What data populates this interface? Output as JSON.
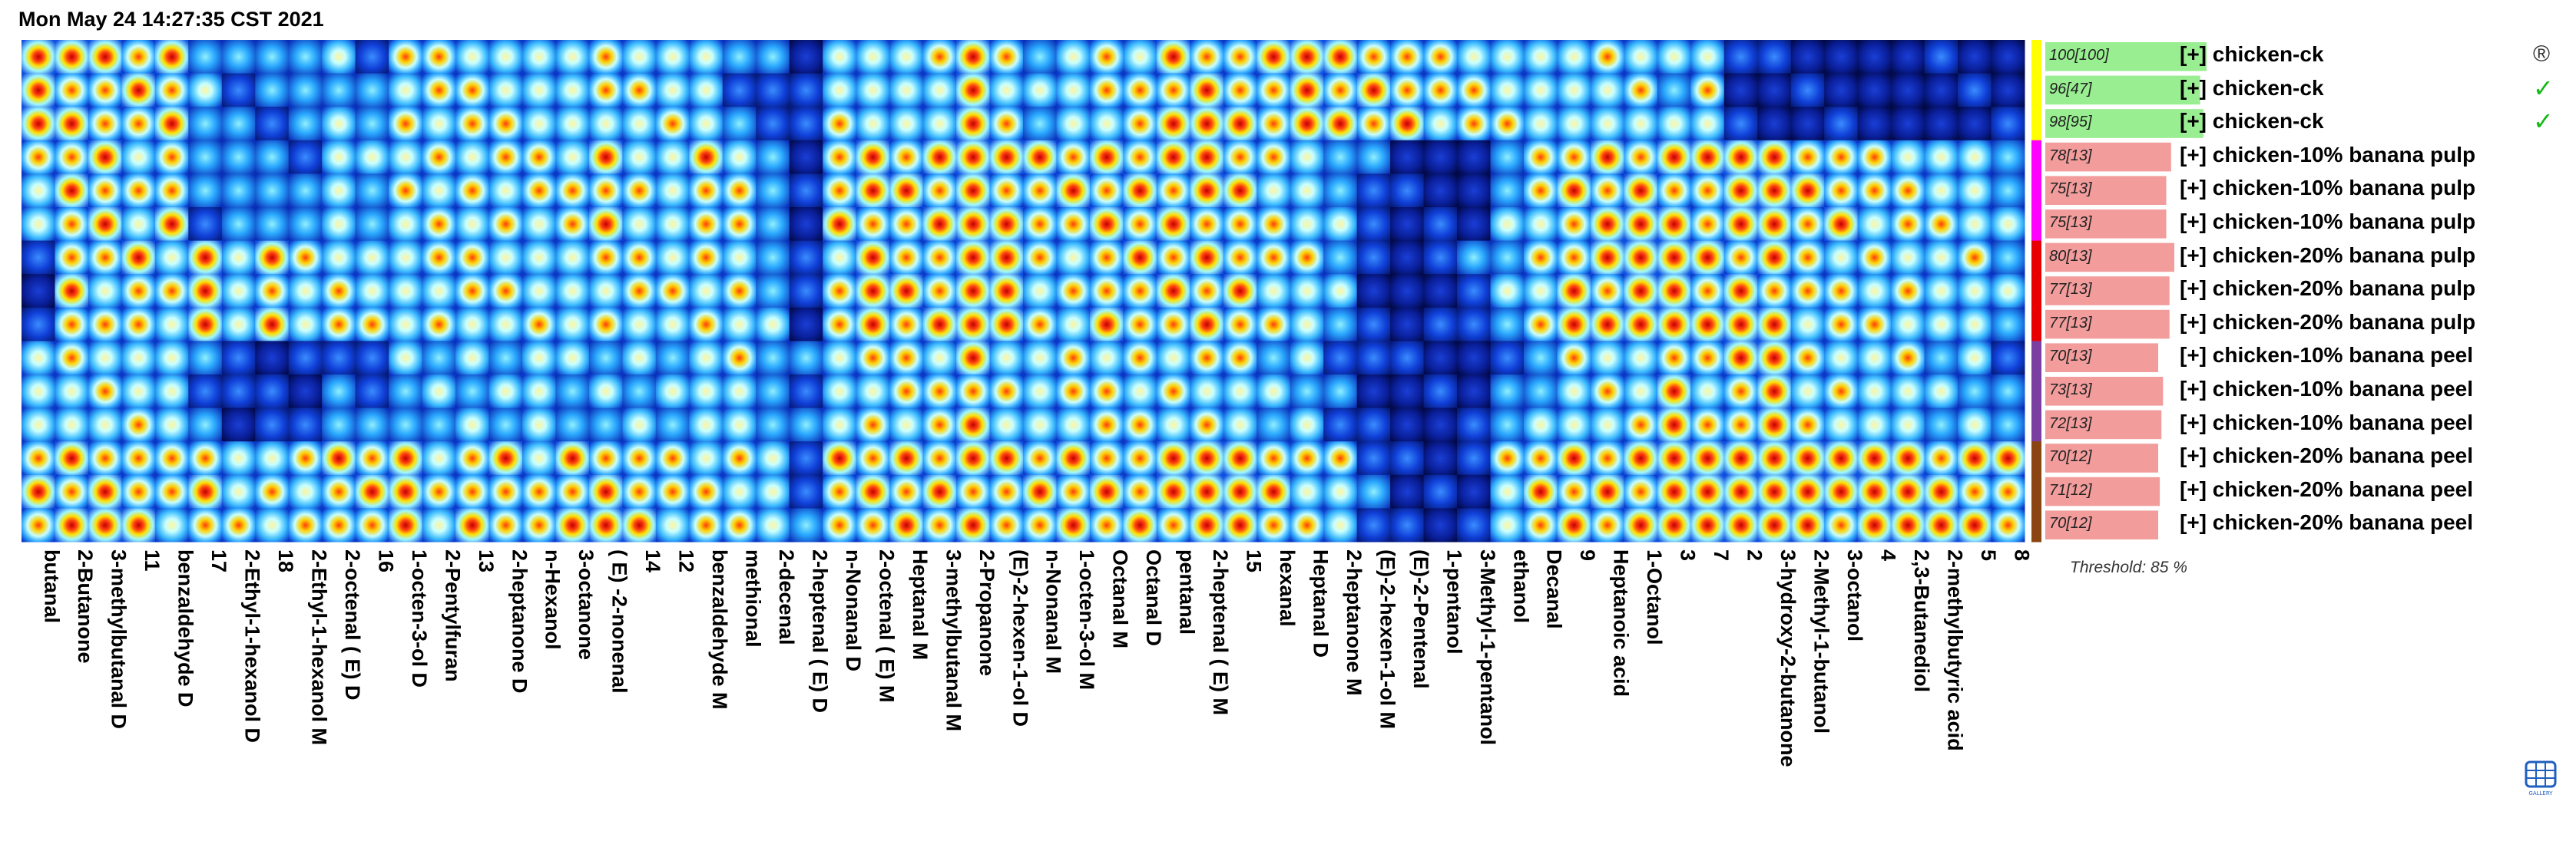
{
  "timestamp": "Mon May 24 14:27:35 CST 2021",
  "threshold_label": "Threshold: 85 %",
  "gallery_label": "GALLERY",
  "marks": {
    "reference": "®",
    "match": "✓"
  },
  "colors": {
    "ck": "#ffff00",
    "banana_pulp_10": "#ff00ff",
    "banana_pulp_20": "#e80000",
    "banana_peel_10": "#7a3fa0",
    "banana_peel_20": "#8b4513",
    "similarity_ok": "#98ee90",
    "similarity_low": "#f29c9c"
  },
  "chart_data": {
    "type": "heatmap",
    "title": "",
    "xlabel": "",
    "ylabel": "",
    "columns": [
      "butanal",
      "2-Butanone",
      "3-methylbutanal D",
      "11",
      "benzaldehyde D",
      "17",
      "2-Ethyl-1-hexanol D",
      "18",
      "2-Ethyl-1-hexanol M",
      "2-octenal ( E) D",
      "16",
      "1-octen-3-ol D",
      "2-Pentylfuran",
      "13",
      "2-heptanone D",
      "n-Hexanol",
      "3-octanone",
      "( E) -2-nonenal",
      "14",
      "12",
      "benzaldehyde M",
      "methional",
      "2-decenal",
      "2-heptenal ( E) D",
      "n-Nonanal D",
      "2-octenal ( E) M",
      "Heptanal M",
      "3-methylbutanal M",
      "2-Propanone",
      "(E)-2-hexen-1-ol D",
      "n-Nonanal M",
      "1-octen-3-ol M",
      "Octanal M",
      "Octanal D",
      "pentanal",
      "2-heptenal ( E) M",
      "15",
      "hexanal",
      "Heptanal D",
      "2-heptanone M",
      "(E)-2-hexen-1-ol M",
      "(E)-2-Pentenal",
      "1-pentanol",
      "3-Methyl-1-pentanol",
      "ethanol",
      "Decanal",
      "9",
      "Heptanoic acid",
      "1-Octanol",
      "3",
      "7",
      "2",
      "3-hydroxy-2-butanone",
      "2-Methyl-1-butanol",
      "3-octanol",
      "4",
      "2,3-Butanediol",
      "2-methylbutyric acid",
      "5",
      "8"
    ],
    "rows": [
      {
        "label": "[+] chicken-ck",
        "group": "ck",
        "similarity": 100,
        "similarity_text": "100[100]",
        "mark": "reference"
      },
      {
        "label": "[+] chicken-ck",
        "group": "ck",
        "similarity": 96,
        "similarity_text": "96[47]",
        "mark": "match"
      },
      {
        "label": "[+] chicken-ck",
        "group": "ck",
        "similarity": 98,
        "similarity_text": "98[95]",
        "mark": "match"
      },
      {
        "label": "[+] chicken-10% banana pulp",
        "group": "banana_pulp_10",
        "similarity": 78,
        "similarity_text": "78[13]"
      },
      {
        "label": "[+] chicken-10% banana pulp",
        "group": "banana_pulp_10",
        "similarity": 75,
        "similarity_text": "75[13]"
      },
      {
        "label": "[+] chicken-10% banana pulp",
        "group": "banana_pulp_10",
        "similarity": 75,
        "similarity_text": "75[13]"
      },
      {
        "label": "[+] chicken-20% banana pulp",
        "group": "banana_pulp_20",
        "similarity": 80,
        "similarity_text": "80[13]"
      },
      {
        "label": "[+] chicken-20% banana pulp",
        "group": "banana_pulp_20",
        "similarity": 77,
        "similarity_text": "77[13]"
      },
      {
        "label": "[+] chicken-20% banana pulp",
        "group": "banana_pulp_20",
        "similarity": 77,
        "similarity_text": "77[13]"
      },
      {
        "label": "[+] chicken-10% banana peel",
        "group": "banana_peel_10",
        "similarity": 70,
        "similarity_text": "70[13]"
      },
      {
        "label": "[+] chicken-10% banana peel",
        "group": "banana_peel_10",
        "similarity": 73,
        "similarity_text": "73[13]"
      },
      {
        "label": "[+] chicken-10% banana peel",
        "group": "banana_peel_10",
        "similarity": 72,
        "similarity_text": "72[13]"
      },
      {
        "label": "[+] chicken-20% banana peel",
        "group": "banana_peel_20",
        "similarity": 70,
        "similarity_text": "70[12]"
      },
      {
        "label": "[+] chicken-20% banana peel",
        "group": "banana_peel_20",
        "similarity": 71,
        "similarity_text": "71[12]"
      },
      {
        "label": "[+] chicken-20% banana peel",
        "group": "banana_peel_20",
        "similarity": 70,
        "similarity_text": "70[12]"
      }
    ],
    "column_group_intensity": [
      [
        1.0,
        0.6,
        0.2,
        0.6,
        0.8
      ],
      [
        0.9,
        0.8,
        0.8,
        0.6,
        0.8
      ],
      [
        0.8,
        0.8,
        0.7,
        0.6,
        0.9
      ],
      [
        0.8,
        0.7,
        0.8,
        0.6,
        0.8
      ],
      [
        0.8,
        0.8,
        0.6,
        0.6,
        0.7
      ],
      [
        0.5,
        0.4,
        1.0,
        0.4,
        0.8
      ],
      [
        0.4,
        0.4,
        0.6,
        0.2,
        0.6
      ],
      [
        0.4,
        0.4,
        0.9,
        0.2,
        0.7
      ],
      [
        0.4,
        0.4,
        0.6,
        0.2,
        0.7
      ],
      [
        0.5,
        0.6,
        0.7,
        0.4,
        0.8
      ],
      [
        0.4,
        0.5,
        0.6,
        0.3,
        0.8
      ],
      [
        0.7,
        0.6,
        0.6,
        0.5,
        0.9
      ],
      [
        0.7,
        0.7,
        0.7,
        0.5,
        0.7
      ],
      [
        0.7,
        0.7,
        0.7,
        0.5,
        0.8
      ],
      [
        0.6,
        0.7,
        0.6,
        0.5,
        0.8
      ],
      [
        0.6,
        0.7,
        0.6,
        0.6,
        0.7
      ],
      [
        0.6,
        0.7,
        0.6,
        0.5,
        0.8
      ],
      [
        0.7,
        0.8,
        0.7,
        0.5,
        0.9
      ],
      [
        0.6,
        0.7,
        0.7,
        0.5,
        0.8
      ],
      [
        0.6,
        0.6,
        0.6,
        0.5,
        0.7
      ],
      [
        0.6,
        0.8,
        0.7,
        0.6,
        0.7
      ],
      [
        0.4,
        0.7,
        0.7,
        0.6,
        0.7
      ],
      [
        0.3,
        0.4,
        0.5,
        0.4,
        0.6
      ],
      [
        0.2,
        0.2,
        0.2,
        0.3,
        0.3
      ],
      [
        0.6,
        0.8,
        0.7,
        0.6,
        0.8
      ],
      [
        0.6,
        0.9,
        0.9,
        0.7,
        0.8
      ],
      [
        0.6,
        0.8,
        0.8,
        0.7,
        0.8
      ],
      [
        0.6,
        0.8,
        0.8,
        0.7,
        0.8
      ],
      [
        0.9,
        1.0,
        1.0,
        0.8,
        0.9
      ],
      [
        0.7,
        0.9,
        0.9,
        0.7,
        0.8
      ],
      [
        0.5,
        0.8,
        0.7,
        0.6,
        0.8
      ],
      [
        0.6,
        0.8,
        0.7,
        0.7,
        0.8
      ],
      [
        0.7,
        0.8,
        0.8,
        0.7,
        0.8
      ],
      [
        0.7,
        0.8,
        0.8,
        0.7,
        0.8
      ],
      [
        0.8,
        0.9,
        0.8,
        0.7,
        0.9
      ],
      [
        0.9,
        0.9,
        0.8,
        0.7,
        0.9
      ],
      [
        0.8,
        0.8,
        0.8,
        0.6,
        0.9
      ],
      [
        0.8,
        0.7,
        0.7,
        0.5,
        0.8
      ],
      [
        0.9,
        0.6,
        0.6,
        0.5,
        0.7
      ],
      [
        0.8,
        0.5,
        0.5,
        0.3,
        0.6
      ],
      [
        0.8,
        0.3,
        0.2,
        0.2,
        0.3
      ],
      [
        0.8,
        0.1,
        0.1,
        0.1,
        0.2
      ],
      [
        0.7,
        0.1,
        0.2,
        0.1,
        0.2
      ],
      [
        0.7,
        0.1,
        0.3,
        0.1,
        0.2
      ],
      [
        0.6,
        0.5,
        0.5,
        0.4,
        0.6
      ],
      [
        0.6,
        0.7,
        0.7,
        0.5,
        0.8
      ],
      [
        0.6,
        0.8,
        0.9,
        0.6,
        0.8
      ],
      [
        0.6,
        0.8,
        0.9,
        0.6,
        0.8
      ],
      [
        0.6,
        0.9,
        1.0,
        0.6,
        0.9
      ],
      [
        0.5,
        0.9,
        1.0,
        0.9,
        1.0
      ],
      [
        0.7,
        0.8,
        0.8,
        0.7,
        0.9
      ],
      [
        0.2,
        0.9,
        0.9,
        0.8,
        1.0
      ],
      [
        0.1,
        0.9,
        0.9,
        0.9,
        1.0
      ],
      [
        0.1,
        0.8,
        0.7,
        0.7,
        1.0
      ],
      [
        0.1,
        0.8,
        0.7,
        0.7,
        0.9
      ],
      [
        0.1,
        0.7,
        0.7,
        0.6,
        0.9
      ],
      [
        0.1,
        0.7,
        0.7,
        0.6,
        0.9
      ],
      [
        0.1,
        0.6,
        0.6,
        0.5,
        0.9
      ],
      [
        0.1,
        0.6,
        0.6,
        0.5,
        0.9
      ],
      [
        0.1,
        0.5,
        0.5,
        0.4,
        0.8
      ]
    ]
  }
}
